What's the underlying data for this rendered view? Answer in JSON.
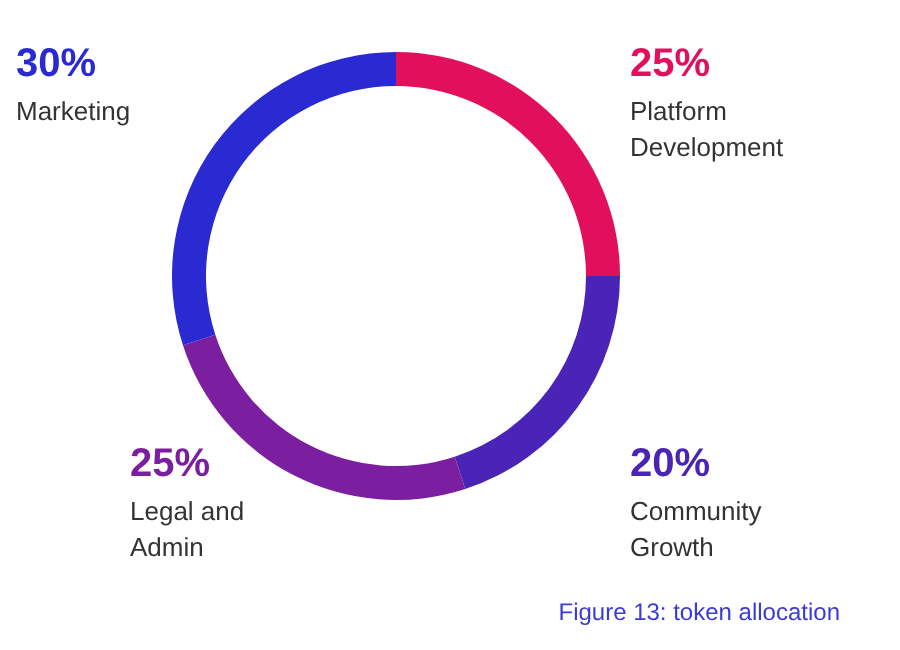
{
  "chart_data": {
    "type": "donut",
    "categories": [
      "Platform\nDevelopment",
      "Community\nGrowth",
      "Legal and\nAdmin",
      "Marketing"
    ],
    "values": [
      25,
      20,
      25,
      30
    ],
    "value_labels": [
      "25%",
      "20%",
      "25%",
      "30%"
    ],
    "colors": [
      "#e2105c",
      "#4a24b6",
      "#7c1ea0",
      "#2a2ad2"
    ],
    "annotations": [
      "Figure 13: token allocation"
    ]
  }
}
